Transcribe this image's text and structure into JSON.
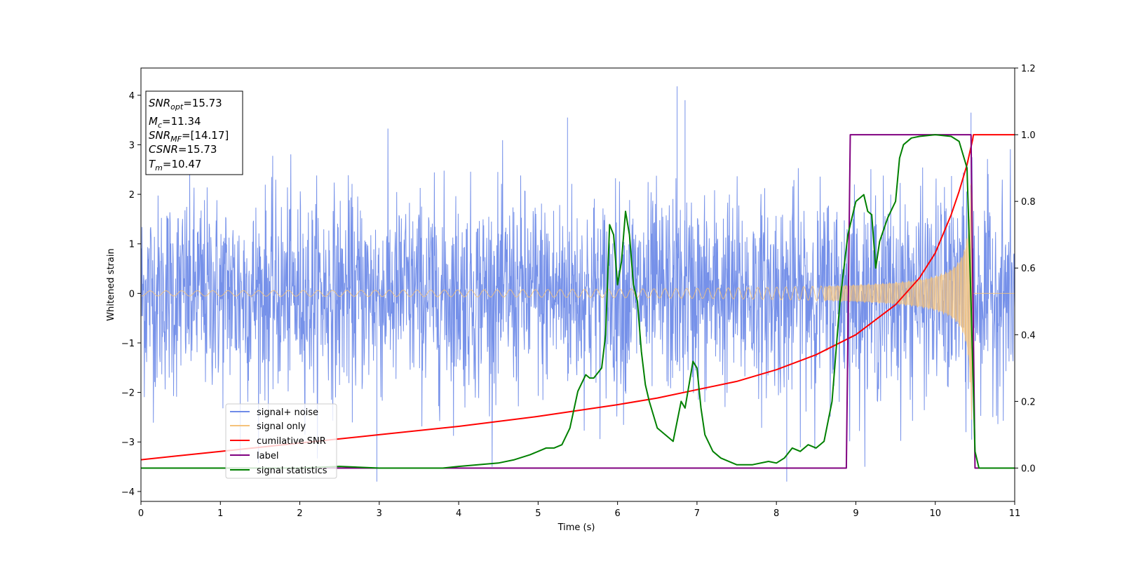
{
  "chart_data": {
    "type": "line",
    "xlabel": "Time (s)",
    "ylabel": "Whitened strain",
    "xlim": [
      0,
      11
    ],
    "ylim": [
      -4.2,
      4.55
    ],
    "y2lim": [
      -0.1,
      1.2
    ],
    "x_ticks": [
      "0",
      "1",
      "2",
      "3",
      "4",
      "5",
      "6",
      "7",
      "8",
      "9",
      "10",
      "11"
    ],
    "y_ticks": [
      "−4",
      "−3",
      "−2",
      "−1",
      "0",
      "1",
      "2",
      "3",
      "4"
    ],
    "y2_ticks": [
      "0.0",
      "0.2",
      "0.4",
      "0.6",
      "0.8",
      "1.0",
      "1.2"
    ],
    "annotation": {
      "lines": [
        {
          "sym": "SNR",
          "sub": "opt",
          "value": "=15.73"
        },
        {
          "sym": "M",
          "sub": "c",
          "value": "=11.34"
        },
        {
          "sym": "SNR",
          "sub": "MF",
          "value": "=[14.17]"
        },
        {
          "sym": "CSNR",
          "sub": "",
          "value": "=15.73"
        },
        {
          "sym": "T",
          "sub": "m",
          "value": "=10.47"
        }
      ]
    },
    "legend": {
      "placement": "lower-left",
      "entries": [
        "signal+ noise",
        "signal only",
        "cumilative SNR",
        "label",
        "signal statistics"
      ]
    },
    "series": [
      {
        "name": "signal+ noise",
        "axis": "left",
        "color": "#6f8be8",
        "kind": "noise",
        "sigma": 1.0,
        "extremes": [
          [
            6.75,
            4.18
          ],
          [
            6.85,
            3.9
          ],
          [
            2.97,
            -3.8
          ],
          [
            8.13,
            -3.8
          ],
          [
            10.45,
            3.65
          ],
          [
            5.37,
            3.55
          ],
          [
            1.25,
            -3.3
          ]
        ]
      },
      {
        "name": "signal only",
        "axis": "left",
        "color": "#f5c27a",
        "kind": "chirp",
        "merger_time": 10.47,
        "amplitude_early": 0.05,
        "amplitude_peak": 2.6
      },
      {
        "name": "cumilative SNR",
        "axis": "right",
        "color": "#ff0000",
        "x": [
          0,
          1,
          2,
          3,
          4,
          5,
          6,
          6.5,
          7,
          7.5,
          8,
          8.5,
          9,
          9.5,
          9.8,
          10.0,
          10.2,
          10.3,
          10.4,
          10.47,
          10.48,
          11
        ],
        "y": [
          0.025,
          0.05,
          0.075,
          0.1,
          0.125,
          0.155,
          0.19,
          0.21,
          0.235,
          0.26,
          0.295,
          0.34,
          0.4,
          0.49,
          0.57,
          0.645,
          0.76,
          0.83,
          0.91,
          0.985,
          1.0,
          1.0
        ]
      },
      {
        "name": "label",
        "axis": "right",
        "color": "#800080",
        "x": [
          0,
          8.88,
          8.93,
          10.45,
          10.5,
          11
        ],
        "y": [
          0,
          0,
          1,
          1,
          0,
          0
        ]
      },
      {
        "name": "signal statistics",
        "axis": "right",
        "color": "#008000",
        "x": [
          0,
          2,
          2.5,
          3,
          3.5,
          3.8,
          4.0,
          4.5,
          4.7,
          4.9,
          5.0,
          5.1,
          5.2,
          5.3,
          5.4,
          5.5,
          5.6,
          5.65,
          5.7,
          5.8,
          5.85,
          5.9,
          5.95,
          6.0,
          6.05,
          6.1,
          6.15,
          6.2,
          6.25,
          6.3,
          6.35,
          6.4,
          6.5,
          6.6,
          6.7,
          6.8,
          6.85,
          6.9,
          6.95,
          7.0,
          7.05,
          7.1,
          7.2,
          7.3,
          7.5,
          7.7,
          7.9,
          8.0,
          8.1,
          8.2,
          8.3,
          8.4,
          8.5,
          8.6,
          8.7,
          8.8,
          8.9,
          9.0,
          9.1,
          9.15,
          9.2,
          9.25,
          9.3,
          9.4,
          9.5,
          9.55,
          9.6,
          9.7,
          9.8,
          10.0,
          10.2,
          10.3,
          10.4,
          10.45,
          10.5,
          10.55,
          10.6,
          11
        ],
        "y": [
          0,
          0,
          0.005,
          0,
          0,
          0,
          0.005,
          0.015,
          0.025,
          0.04,
          0.05,
          0.06,
          0.06,
          0.07,
          0.12,
          0.23,
          0.28,
          0.27,
          0.27,
          0.3,
          0.4,
          0.73,
          0.7,
          0.55,
          0.62,
          0.77,
          0.7,
          0.55,
          0.5,
          0.35,
          0.25,
          0.2,
          0.12,
          0.1,
          0.08,
          0.2,
          0.18,
          0.25,
          0.32,
          0.3,
          0.18,
          0.1,
          0.05,
          0.03,
          0.01,
          0.01,
          0.02,
          0.015,
          0.03,
          0.06,
          0.05,
          0.07,
          0.06,
          0.08,
          0.2,
          0.5,
          0.7,
          0.8,
          0.82,
          0.77,
          0.76,
          0.6,
          0.68,
          0.75,
          0.8,
          0.93,
          0.97,
          0.99,
          0.995,
          1.0,
          0.995,
          0.98,
          0.9,
          0.5,
          0.05,
          0.0,
          0,
          0
        ]
      }
    ]
  }
}
